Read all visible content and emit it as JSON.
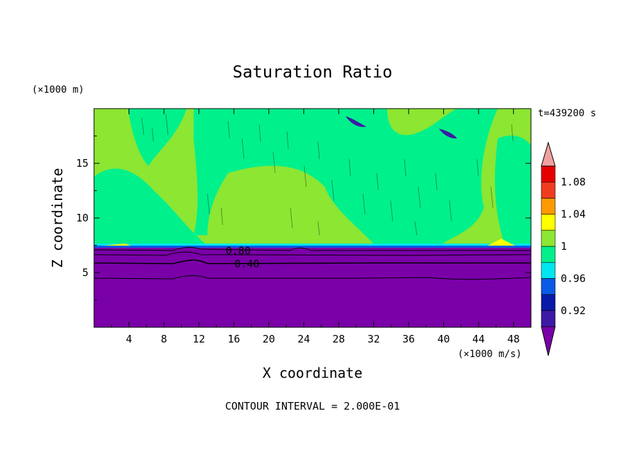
{
  "chart_data": {
    "type": "heatmap",
    "title": "Saturation Ratio",
    "xlabel": "X coordinate",
    "ylabel": "Z coordinate",
    "x_unit_label": "(×1000 m/s)",
    "y_unit_label": "(×1000 m)",
    "time_label": "t=439200 s",
    "footer": "CONTOUR INTERVAL = 2.000E-01",
    "xlim": [
      0,
      50
    ],
    "ylim": [
      0,
      20
    ],
    "x_ticks": [
      4,
      8,
      12,
      16,
      20,
      24,
      28,
      32,
      36,
      40,
      44,
      48
    ],
    "y_ticks": [
      5,
      10,
      15
    ],
    "colorbar": {
      "levels": [
        0.9,
        0.92,
        0.94,
        0.96,
        0.98,
        1.0,
        1.02,
        1.04,
        1.06,
        1.08,
        1.1
      ],
      "tick_labels": [
        "1.08",
        "1.04",
        "1",
        "0.96",
        "0.92"
      ],
      "tick_values": [
        1.08,
        1.04,
        1.0,
        0.96,
        0.92
      ],
      "colors": [
        "#7a00a8",
        "#3c1aa6",
        "#0a1aa8",
        "#0a5ae6",
        "#00e6f0",
        "#00f08c",
        "#8ce632",
        "#ffff00",
        "#ff9a00",
        "#f03c1e",
        "#e60000",
        "#f0a0a0"
      ]
    },
    "contour_labels": [
      {
        "text": "0.80",
        "x": 16.5,
        "y": 7.0
      },
      {
        "text": "0.40",
        "x": 17.5,
        "y": 5.8
      }
    ],
    "regions": {
      "lower_subsaturated_top_z": 7.4,
      "upper_supersaturated": "mixed 0.98-1.02"
    }
  }
}
